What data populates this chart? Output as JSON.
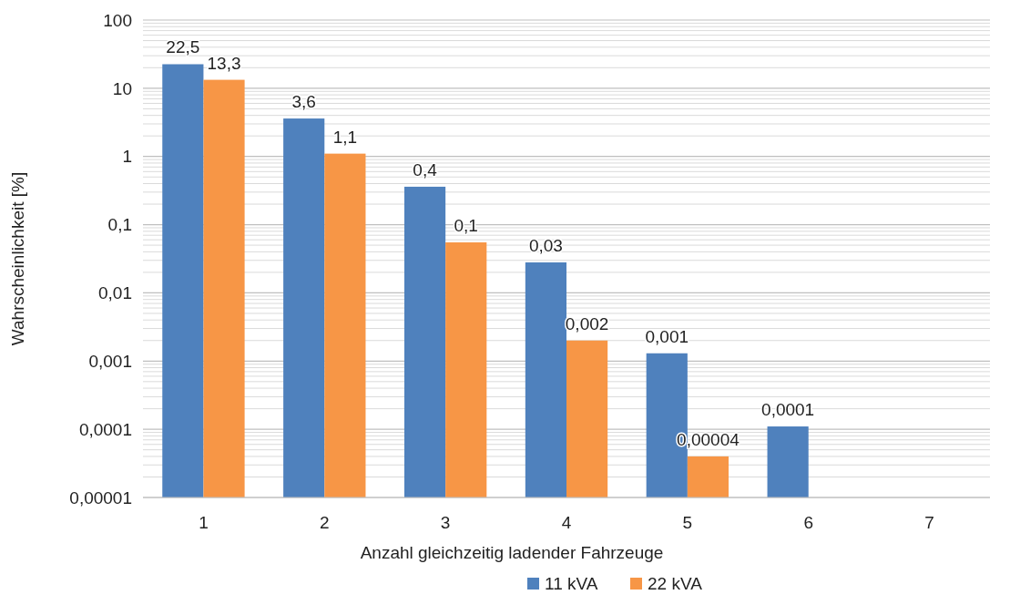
{
  "chart_data": {
    "type": "bar",
    "xlabel": "Anzahl gleichzeitig ladender Fahrzeuge",
    "ylabel": "Wahrscheinlichkeit [%]",
    "categories": [
      "1",
      "2",
      "3",
      "4",
      "5",
      "6",
      "7"
    ],
    "series": [
      {
        "name": "11 kVA",
        "color": "#4f81bd",
        "values": [
          22.5,
          3.6,
          0.36,
          0.028,
          0.0013,
          0.00011,
          null
        ],
        "value_labels": [
          "22,5",
          "3,6",
          "0,4",
          "0,03",
          "0,001",
          "0,0001",
          null
        ]
      },
      {
        "name": "22 kVA",
        "color": "#f79646",
        "values": [
          13.3,
          1.1,
          0.055,
          0.002,
          4e-05,
          null,
          null
        ],
        "value_labels": [
          "13,3",
          "1,1",
          "0,1",
          "0,002",
          "0,00004",
          null,
          null
        ]
      }
    ],
    "log": "y",
    "ylim": [
      1e-05,
      100
    ],
    "yticks": [
      {
        "value": 1e-05,
        "label": "0,00001"
      },
      {
        "value": 0.0001,
        "label": "0,0001"
      },
      {
        "value": 0.001,
        "label": "0,001"
      },
      {
        "value": 0.01,
        "label": "0,01"
      },
      {
        "value": 0.1,
        "label": "0,1"
      },
      1,
      10,
      100
    ],
    "grid": true,
    "legend": "bottom"
  }
}
